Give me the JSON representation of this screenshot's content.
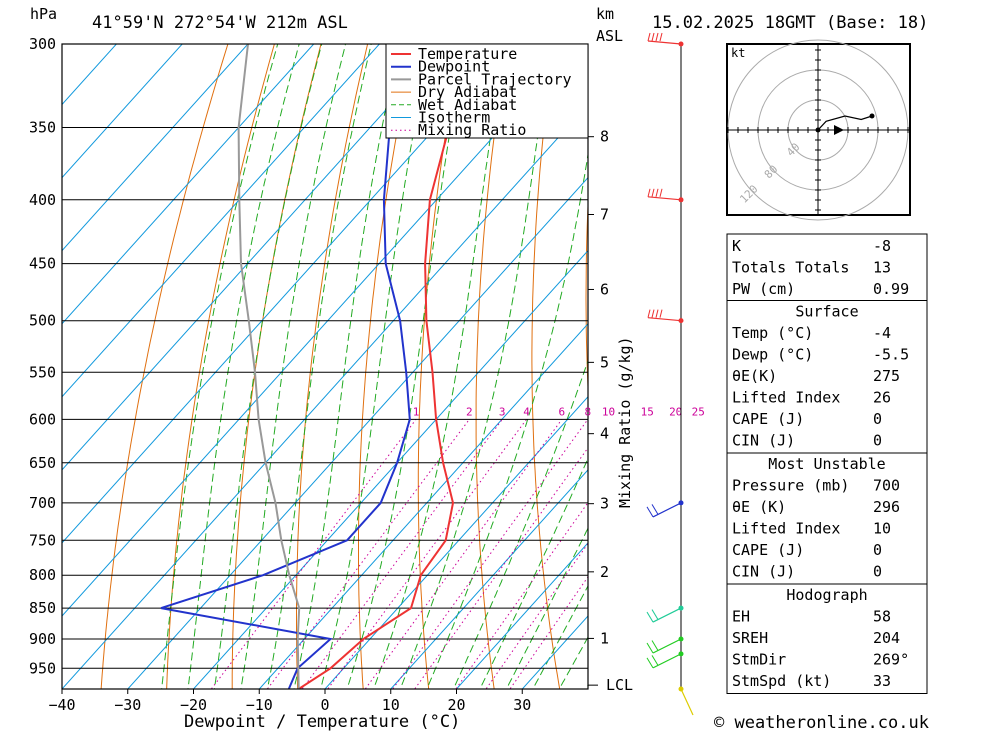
{
  "header": {
    "pressure_unit": "hPa",
    "location": "41°59'N  272°54'W  212m  ASL",
    "km_unit": "km",
    "asl_label": "ASL",
    "datetime": "15.02.2025  18GMT  (Base: 18)"
  },
  "chart_data": {
    "type": "line",
    "xlabel": "Dewpoint / Temperature (°C)",
    "ylabel": "hPa",
    "mixing_ratio_axis_label": "Mixing Ratio (g/kg)",
    "x_ticks": [
      -40,
      -30,
      -20,
      -10,
      0,
      10,
      20,
      30
    ],
    "x_tick_labels": [
      "−40",
      "−30",
      "−20",
      "−10",
      "0",
      "10",
      "20",
      "30"
    ],
    "p_ticks": [
      300,
      350,
      400,
      450,
      500,
      550,
      600,
      650,
      700,
      750,
      800,
      850,
      900,
      950
    ],
    "xlim": [
      -40,
      40
    ],
    "plim": [
      300,
      987
    ],
    "km_ticks": [
      {
        "km": 1,
        "p": 899
      },
      {
        "km": 2,
        "p": 795
      },
      {
        "km": 3,
        "p": 701
      },
      {
        "km": 4,
        "p": 616
      },
      {
        "km": 5,
        "p": 540
      },
      {
        "km": 6,
        "p": 472
      },
      {
        "km": 7,
        "p": 411
      },
      {
        "km": 8,
        "p": 356
      }
    ],
    "lcl_label": "LCL",
    "lcl_p": 980,
    "mixing_ratio_labels": [
      "1",
      "2",
      "3",
      "4",
      "6",
      "8",
      "10",
      "15",
      "20",
      "25"
    ],
    "mixing_ratio_values": [
      1,
      2,
      3,
      4,
      6,
      8,
      10,
      15,
      20,
      25
    ],
    "legend": [
      "Temperature",
      "Dewpoint",
      "Parcel Trajectory",
      "Dry Adiabat",
      "Wet Adiabat",
      "Isotherm",
      "Mixing Ratio"
    ],
    "series": [
      {
        "name": "Temperature",
        "color": "#ee3333",
        "points": [
          [
            987,
            -4
          ],
          [
            950,
            -2
          ],
          [
            900,
            -1
          ],
          [
            850,
            2
          ],
          [
            800,
            -1
          ],
          [
            750,
            -2
          ],
          [
            700,
            -6
          ],
          [
            650,
            -13
          ],
          [
            600,
            -20
          ],
          [
            550,
            -27
          ],
          [
            500,
            -35
          ],
          [
            450,
            -43
          ],
          [
            400,
            -51
          ],
          [
            350,
            -58
          ],
          [
            300,
            -60
          ]
        ]
      },
      {
        "name": "Dewpoint",
        "color": "#2233cc",
        "points": [
          [
            987,
            -5.5
          ],
          [
            950,
            -7
          ],
          [
            900,
            -6
          ],
          [
            850,
            -36
          ],
          [
            800,
            -25
          ],
          [
            750,
            -17
          ],
          [
            700,
            -17
          ],
          [
            650,
            -20
          ],
          [
            600,
            -24
          ],
          [
            550,
            -31
          ],
          [
            500,
            -39
          ],
          [
            450,
            -49
          ],
          [
            400,
            -58
          ],
          [
            350,
            -67
          ],
          [
            300,
            -72
          ]
        ]
      },
      {
        "name": "Parcel Trajectory",
        "color": "#999999",
        "points": [
          [
            987,
            -4
          ],
          [
            900,
            -11
          ],
          [
            850,
            -15
          ],
          [
            800,
            -21
          ],
          [
            750,
            -27
          ],
          [
            700,
            -33
          ],
          [
            650,
            -40
          ],
          [
            600,
            -47
          ],
          [
            550,
            -54
          ],
          [
            500,
            -62
          ],
          [
            450,
            -71
          ],
          [
            400,
            -80
          ],
          [
            350,
            -90
          ],
          [
            300,
            -100
          ]
        ]
      }
    ],
    "wind_barbs": [
      {
        "p": 300,
        "color": "#ee3333"
      },
      {
        "p": 400,
        "color": "#ee3333"
      },
      {
        "p": 500,
        "color": "#ee3333"
      },
      {
        "p": 700,
        "color": "#2233cc"
      },
      {
        "p": 850,
        "color": "#22cc99"
      },
      {
        "p": 900,
        "color": "#22cc22"
      },
      {
        "p": 925,
        "color": "#22cc22"
      },
      {
        "p": 987,
        "color": "#ddcc00"
      }
    ],
    "hodograph": {
      "unit": "kt",
      "ring_labels": [
        "40",
        "80",
        "120"
      ],
      "points": [
        [
          0,
          0
        ],
        [
          0.15,
          0.25
        ],
        [
          0.5,
          0.4
        ],
        [
          0.8,
          0.3
        ],
        [
          1.0,
          0.4
        ]
      ]
    }
  },
  "indices": {
    "top": [
      {
        "name": "K",
        "value": "-8"
      },
      {
        "name": "Totals Totals",
        "value": "13"
      },
      {
        "name": "PW (cm)",
        "value": "0.99"
      }
    ],
    "surface": {
      "title": "Surface",
      "rows": [
        {
          "name": "Temp (°C)",
          "value": "-4"
        },
        {
          "name": "Dewp (°C)",
          "value": "-5.5"
        },
        {
          "name": "θE(K)",
          "value": "275"
        },
        {
          "name": "Lifted Index",
          "value": "26"
        },
        {
          "name": "CAPE (J)",
          "value": "0"
        },
        {
          "name": "CIN (J)",
          "value": "0"
        }
      ]
    },
    "most_unstable": {
      "title": "Most Unstable",
      "rows": [
        {
          "name": "Pressure (mb)",
          "value": "700"
        },
        {
          "name": "θE (K)",
          "value": "296"
        },
        {
          "name": "Lifted Index",
          "value": "10"
        },
        {
          "name": "CAPE (J)",
          "value": "0"
        },
        {
          "name": "CIN (J)",
          "value": "0"
        }
      ]
    },
    "hodograph": {
      "title": "Hodograph",
      "rows": [
        {
          "name": "EH",
          "value": "58"
        },
        {
          "name": "SREH",
          "value": "204"
        },
        {
          "name": "StmDir",
          "value": "269°"
        },
        {
          "name": "StmSpd (kt)",
          "value": "33"
        }
      ]
    }
  },
  "footer": {
    "copyright": "© weatheronline.co.uk"
  },
  "colors": {
    "temperature": "#ee3333",
    "dewpoint": "#2233cc",
    "parcel": "#999999",
    "dry_adiabat": "#e07010",
    "wet_adiabat": "#22aa22",
    "isotherm": "#1199dd",
    "mixing_ratio": "#cc0099"
  }
}
